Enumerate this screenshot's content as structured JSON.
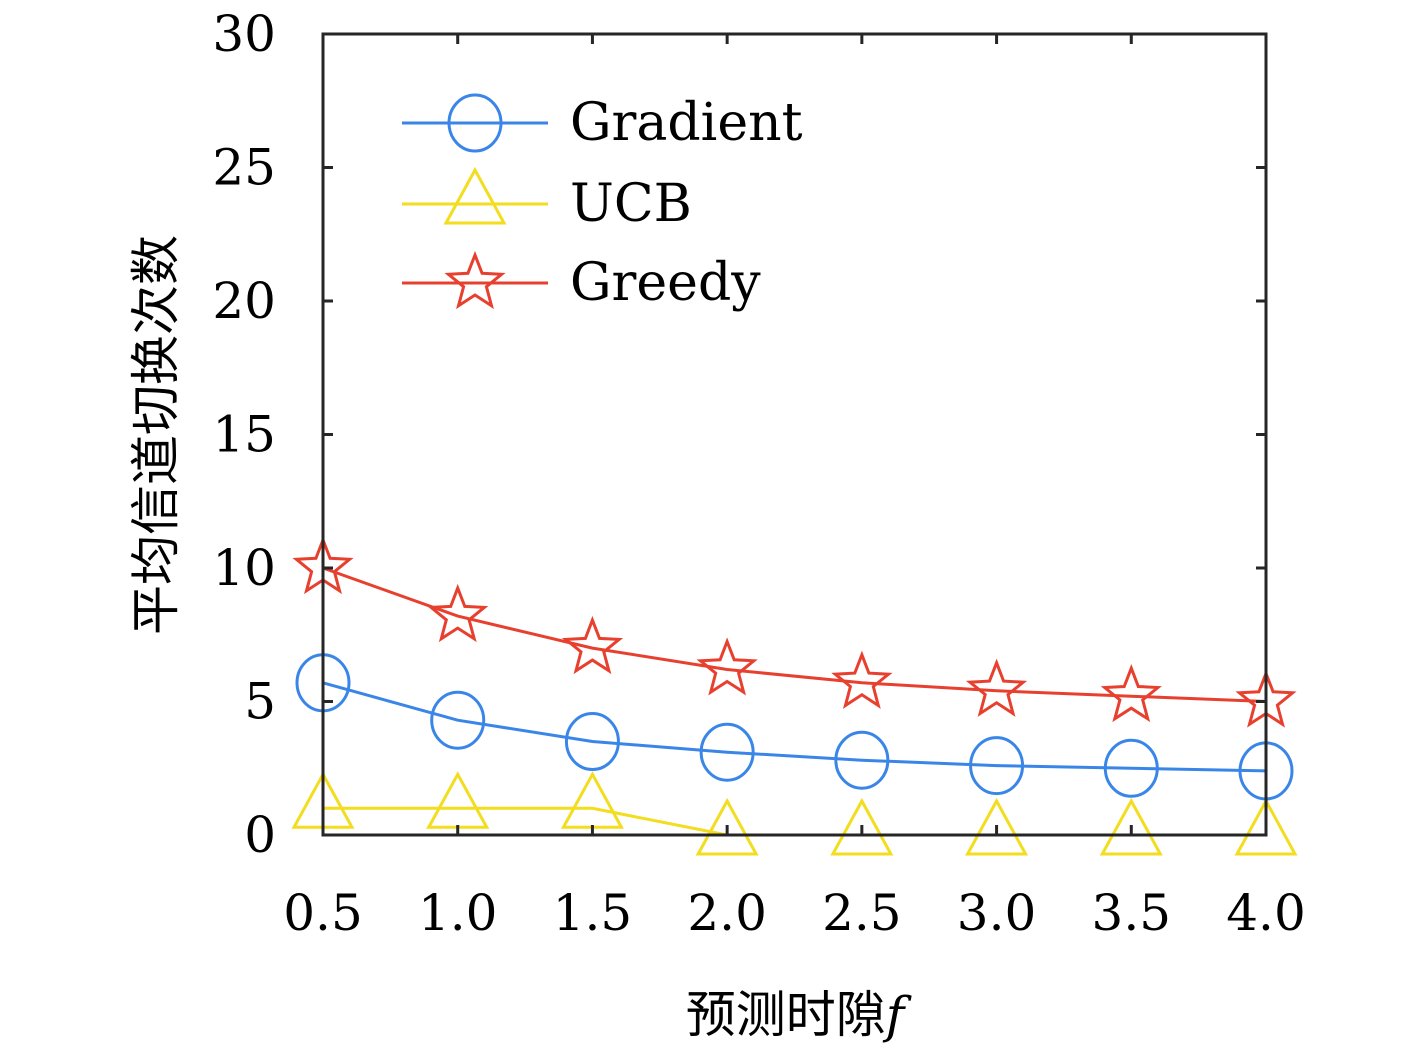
{
  "chart_data": {
    "type": "line",
    "title": "",
    "xlabel": "预测时隙",
    "xlabel_symbol": "f",
    "ylabel": "平均信道切换次数",
    "x": [
      0.5,
      1.0,
      1.5,
      2.0,
      2.5,
      3.0,
      3.5,
      4.0
    ],
    "x_tick_labels": [
      "0.5",
      "1.0",
      "1.5",
      "2.0",
      "2.5",
      "3.0",
      "3.5",
      "4.0"
    ],
    "y_ticks": [
      0,
      5,
      10,
      15,
      20,
      25,
      30
    ],
    "y_tick_labels": [
      "0",
      "5",
      "10",
      "15",
      "20",
      "25",
      "30"
    ],
    "xlim": [
      0.5,
      4.0
    ],
    "ylim": [
      0,
      30
    ],
    "grid": false,
    "legend_position": "top-left",
    "series": [
      {
        "name": "Gradient",
        "color": "#3a86e8",
        "marker": "circle",
        "values": [
          5.7,
          4.3,
          3.5,
          3.1,
          2.8,
          2.6,
          2.5,
          2.4
        ]
      },
      {
        "name": "UCB",
        "color": "#f2dd1f",
        "marker": "triangle",
        "values": [
          1.0,
          1.0,
          1.0,
          0.0,
          0.0,
          0.0,
          0.0,
          0.0
        ]
      },
      {
        "name": "Greedy",
        "color": "#e8402f",
        "marker": "star",
        "values": [
          10.0,
          8.2,
          7.0,
          6.2,
          5.7,
          5.4,
          5.2,
          5.0
        ]
      }
    ]
  }
}
